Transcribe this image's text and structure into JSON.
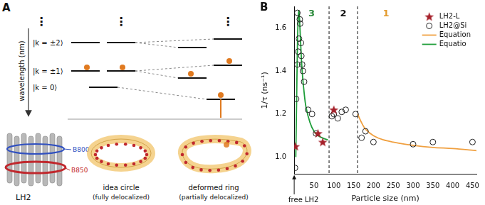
{
  "chart_data": {
    "type": "scatter",
    "title": "B",
    "x_label": "Particle size (nm)",
    "y_label": "1/τ (ns⁻¹)",
    "xlim": [
      0,
      460
    ],
    "xticks": [
      50,
      100,
      150,
      200,
      250,
      300,
      350,
      400,
      450
    ],
    "ylim": [
      0.92,
      1.7
    ],
    "yticks": [
      {
        "value": 1.0,
        "label": "1.0"
      },
      1.2,
      1.4,
      1.6
    ],
    "grid": false,
    "legend": "upper right",
    "series": [
      {
        "name": "LH2-L",
        "type": "scatter",
        "marker": "star",
        "color": "#a5202a",
        "x": [
          3,
          60,
          72,
          100
        ],
        "values": [
          1.05,
          1.11,
          1.07,
          1.22
        ]
      },
      {
        "name": "LH2@Si",
        "type": "scatter",
        "marker": "open_circle",
        "color": "#222222",
        "x": [
          2,
          5,
          8,
          8,
          10,
          12,
          14,
          15,
          17,
          18,
          20,
          22,
          25,
          35,
          45,
          55,
          95,
          100,
          110,
          120,
          130,
          155,
          170,
          180,
          200,
          300,
          350,
          450
        ],
        "values": [
          0.95,
          1.27,
          1.43,
          1.67,
          1.49,
          1.55,
          1.64,
          1.62,
          1.53,
          1.47,
          1.43,
          1.4,
          1.35,
          1.22,
          1.2,
          1.11,
          1.19,
          1.2,
          1.18,
          1.21,
          1.22,
          1.2,
          1.09,
          1.12,
          1.07,
          1.06,
          1.07,
          1.07
        ]
      },
      {
        "name": "Equation",
        "type": "line",
        "line_style": "solid",
        "color": "#f0a040",
        "x": [
          160,
          170,
          180,
          200,
          225,
          250,
          300,
          350,
          400,
          460
        ],
        "values": [
          1.2,
          1.16,
          1.13,
          1.1,
          1.08,
          1.07,
          1.055,
          1.045,
          1.04,
          1.03
        ]
      },
      {
        "name": "Equatio",
        "type": "line",
        "line_style": "solid",
        "color": "#1f9e3a",
        "x": [
          4,
          6,
          8,
          10,
          12,
          14,
          17,
          20,
          25,
          30,
          40,
          50,
          60,
          70,
          85
        ],
        "values": [
          1.0,
          1.25,
          1.5,
          1.65,
          1.68,
          1.62,
          1.5,
          1.4,
          1.3,
          1.23,
          1.16,
          1.12,
          1.1,
          1.09,
          1.08
        ]
      }
    ],
    "dividers": [
      88,
      160
    ],
    "regions": [
      {
        "label": "3",
        "color": "#2a8a3a"
      },
      {
        "label": "2",
        "color": "#111111"
      },
      {
        "label": "1",
        "color": "#e39a2c"
      }
    ],
    "annotations": [
      {
        "text": "free LH2",
        "x": 0
      }
    ]
  },
  "diagram": {
    "panel_label": "A",
    "axis_label": "wavelength (nm)",
    "ellipsis": "⋮",
    "states": [
      "|k = ±2⟩",
      "|k = ±1⟩",
      "|k = 0⟩"
    ],
    "protein": {
      "label": "LH2",
      "bands": [
        {
          "label": "B800",
          "color": "#3050c0"
        },
        {
          "label": "B850",
          "color": "#c0282d"
        }
      ]
    },
    "models": [
      {
        "title": "idea circle",
        "subtitle": "(fully delocalized)"
      },
      {
        "title": "deformed ring",
        "subtitle": "(partially delocalized)"
      }
    ]
  }
}
